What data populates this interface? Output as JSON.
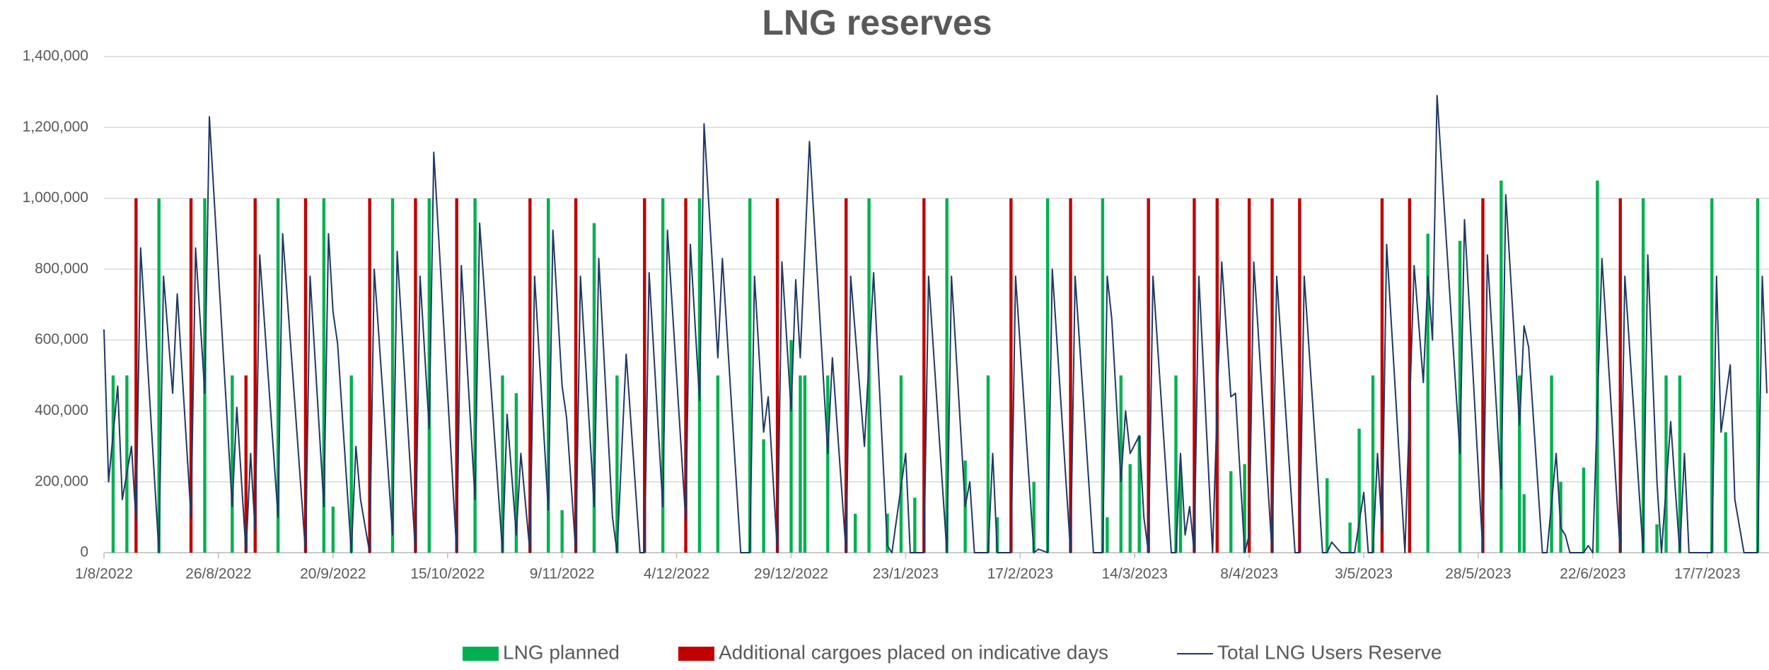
{
  "chart_data": {
    "type": "bar-line",
    "title": "LNG reserves",
    "xlim": [
      "1/8/2022",
      "30/7/2023"
    ],
    "xticks": [
      "1/8/2022",
      "26/8/2022",
      "20/9/2022",
      "15/10/2022",
      "9/11/2022",
      "4/12/2022",
      "29/12/2022",
      "23/1/2023",
      "17/2/2023",
      "14/3/2023",
      "8/4/2023",
      "3/5/2023",
      "28/5/2023",
      "22/6/2023",
      "17/7/2023"
    ],
    "ylim": [
      0,
      1400000
    ],
    "yticks": [
      0,
      {
        "value": 200000,
        "label": "200,000"
      },
      {
        "value": 400000,
        "label": "400,000"
      },
      {
        "value": 600000,
        "label": "600,000"
      },
      {
        "value": 800000,
        "label": "800,000"
      },
      {
        "value": 1000000,
        "label": "1,000,000"
      },
      {
        "value": 1200000,
        "label": "1,200,000"
      },
      {
        "value": 1400000,
        "label": "1,400,000"
      }
    ],
    "grid": true,
    "series": [
      {
        "name": "LNG planned",
        "kind": "bar",
        "color": "#00b050",
        "x": [
          "3/8/2022",
          "6/8/2022",
          "13/8/2022",
          "23/8/2022",
          "29/8/2022",
          "8/9/2022",
          "18/9/2022",
          "20/9/2022",
          "24/9/2022",
          "3/10/2022",
          "11/10/2022",
          "21/10/2022",
          "27/10/2022",
          "30/10/2022",
          "6/11/2022",
          "9/11/2022",
          "16/11/2022",
          "21/11/2022",
          "1/12/2022",
          "9/12/2022",
          "13/12/2022",
          "20/12/2022",
          "23/12/2022",
          "29/12/2022",
          "31/12/2022",
          "1/1/2023",
          "6/1/2023",
          "12/1/2023",
          "15/1/2023",
          "19/1/2023",
          "22/1/2023",
          "25/1/2023",
          "1/2/2023",
          "5/2/2023",
          "10/2/2023",
          "12/2/2023",
          "20/2/2023",
          "23/2/2023",
          "7/3/2023",
          "8/3/2023",
          "11/3/2023",
          "13/3/2023",
          "15/3/2023",
          "23/3/2023",
          "24/3/2023",
          "4/4/2023",
          "7/4/2023",
          "25/4/2023",
          "30/4/2023",
          "2/5/2023",
          "5/5/2023",
          "17/5/2023",
          "24/5/2023",
          "2/6/2023",
          "6/6/2023",
          "7/6/2023",
          "13/6/2023",
          "15/6/2023",
          "20/6/2023",
          "23/6/2023",
          "3/7/2023",
          "6/7/2023",
          "8/7/2023",
          "11/7/2023",
          "18/7/2023",
          "21/7/2023",
          "28/7/2023"
        ],
        "values": [
          500000,
          500000,
          1000000,
          1000000,
          500000,
          1000000,
          1000000,
          130000,
          500000,
          1000000,
          1000000,
          1000000,
          500000,
          450000,
          1000000,
          120000,
          930000,
          500000,
          1000000,
          1000000,
          500000,
          1000000,
          320000,
          600000,
          500000,
          500000,
          500000,
          110000,
          1000000,
          110000,
          500000,
          155000,
          1000000,
          260000,
          500000,
          100000,
          200000,
          1000000,
          1000000,
          100000,
          500000,
          250000,
          330000,
          500000,
          240000,
          230000,
          250000,
          210000,
          85000,
          350000,
          500000,
          900000,
          880000,
          1050000,
          500000,
          165000,
          500000,
          200000,
          240000,
          1050000,
          1000000,
          80000,
          500000,
          500000,
          1000000,
          340000,
          1000000
        ]
      },
      {
        "name": "Additional cargoes placed on indicative days",
        "kind": "bar",
        "color": "#c00000",
        "x": [
          "8/8/2022",
          "20/8/2022",
          "1/9/2022",
          "3/9/2022",
          "14/9/2022",
          "28/9/2022",
          "8/10/2022",
          "17/10/2022",
          "2/11/2022",
          "12/11/2022",
          "27/11/2022",
          "6/12/2022",
          "26/12/2022",
          "10/1/2023",
          "27/1/2023",
          "15/2/2023",
          "28/2/2023",
          "17/3/2023",
          "27/3/2023",
          "1/4/2023",
          "8/4/2023",
          "13/4/2023",
          "19/4/2023",
          "7/5/2023",
          "13/5/2023",
          "29/5/2023",
          "28/6/2023"
        ],
        "values": [
          1000000,
          1000000,
          500000,
          1000000,
          1000000,
          1000000,
          1000000,
          1000000,
          1000000,
          1000000,
          1000000,
          1000000,
          1000000,
          1000000,
          1000000,
          1000000,
          1000000,
          1000000,
          1000000,
          1000000,
          1000000,
          1000000,
          1000000,
          1000000,
          1000000,
          1000000,
          1000000
        ]
      },
      {
        "name": "Total LNG Users Reserve",
        "kind": "line",
        "color": "#1f3864",
        "x": [
          "1/8/2022",
          "2/8/2022",
          "4/8/2022",
          "5/8/2022",
          "7/8/2022",
          "8/8/2022",
          "9/8/2022",
          "13/8/2022",
          "14/8/2022",
          "16/8/2022",
          "17/8/2022",
          "20/8/2022",
          "21/8/2022",
          "23/8/2022",
          "24/8/2022",
          "29/8/2022",
          "30/8/2022",
          "1/9/2022",
          "2/9/2022",
          "3/9/2022",
          "4/9/2022",
          "8/9/2022",
          "9/9/2022",
          "14/9/2022",
          "15/9/2022",
          "18/9/2022",
          "19/9/2022",
          "20/9/2022",
          "21/9/2022",
          "24/9/2022",
          "25/9/2022",
          "26/9/2022",
          "28/9/2022",
          "29/9/2022",
          "3/10/2022",
          "4/10/2022",
          "8/10/2022",
          "9/10/2022",
          "11/10/2022",
          "12/10/2022",
          "17/10/2022",
          "18/10/2022",
          "21/10/2022",
          "22/10/2022",
          "27/10/2022",
          "28/10/2022",
          "30/10/2022",
          "31/10/2022",
          "2/11/2022",
          "3/11/2022",
          "6/11/2022",
          "7/11/2022",
          "9/11/2022",
          "10/11/2022",
          "12/11/2022",
          "13/11/2022",
          "16/11/2022",
          "17/11/2022",
          "20/11/2022",
          "21/11/2022",
          "23/11/2022",
          "26/11/2022",
          "27/11/2022",
          "28/11/2022",
          "1/12/2022",
          "2/12/2022",
          "6/12/2022",
          "7/12/2022",
          "9/12/2022",
          "10/12/2022",
          "13/12/2022",
          "14/12/2022",
          "18/12/2022",
          "20/12/2022",
          "21/12/2022",
          "23/12/2022",
          "24/12/2022",
          "26/12/2022",
          "27/12/2022",
          "29/12/2022",
          "30/12/2022",
          "31/12/2022",
          "2/1/2023",
          "6/1/2023",
          "7/1/2023",
          "10/1/2023",
          "11/1/2023",
          "14/1/2023",
          "16/1/2023",
          "19/1/2023",
          "20/1/2023",
          "23/1/2023",
          "24/1/2023",
          "27/1/2023",
          "28/1/2023",
          "1/2/2023",
          "2/2/2023",
          "5/2/2023",
          "6/2/2023",
          "7/2/2023",
          "10/2/2023",
          "11/2/2023",
          "12/2/2023",
          "15/2/2023",
          "16/2/2023",
          "20/2/2023",
          "21/2/2023",
          "23/2/2023",
          "24/2/2023",
          "28/2/2023",
          "1/3/2023",
          "5/3/2023",
          "7/3/2023",
          "8/3/2023",
          "9/3/2023",
          "11/3/2023",
          "12/3/2023",
          "13/3/2023",
          "15/3/2023",
          "16/3/2023",
          "17/3/2023",
          "18/3/2023",
          "22/3/2023",
          "23/3/2023",
          "24/3/2023",
          "25/3/2023",
          "26/3/2023",
          "27/3/2023",
          "28/3/2023",
          "31/3/2023",
          "2/4/2023",
          "4/4/2023",
          "5/4/2023",
          "7/4/2023",
          "8/4/2023",
          "9/4/2023",
          "13/4/2023",
          "14/4/2023",
          "18/4/2023",
          "19/4/2023",
          "20/4/2023",
          "24/4/2023",
          "25/4/2023",
          "26/4/2023",
          "28/4/2023",
          "1/5/2023",
          "3/5/2023",
          "4/5/2023",
          "5/5/2023",
          "6/5/2023",
          "7/5/2023",
          "8/5/2023",
          "12/5/2023",
          "14/5/2023",
          "16/5/2023",
          "17/5/2023",
          "18/5/2023",
          "19/5/2023",
          "24/5/2023",
          "25/5/2023",
          "29/5/2023",
          "30/5/2023",
          "2/6/2023",
          "3/6/2023",
          "6/6/2023",
          "7/6/2023",
          "8/6/2023",
          "11/6/2023",
          "12/6/2023",
          "14/6/2023",
          "15/6/2023",
          "16/6/2023",
          "17/6/2023",
          "20/6/2023",
          "21/6/2023",
          "22/6/2023",
          "24/6/2023",
          "28/6/2023",
          "29/6/2023",
          "3/7/2023",
          "4/7/2023",
          "6/7/2023",
          "7/7/2023",
          "9/7/2023",
          "10/7/2023",
          "11/7/2023",
          "12/7/2023",
          "13/7/2023",
          "18/7/2023",
          "19/7/2023",
          "20/7/2023",
          "22/7/2023",
          "23/7/2023",
          "25/7/2023",
          "28/7/2023",
          "29/7/2023",
          "30/7/2023"
        ],
        "values": [
          630000,
          200000,
          470000,
          150000,
          300000,
          90000,
          860000,
          0,
          780000,
          450000,
          730000,
          100000,
          860000,
          450000,
          1230000,
          130000,
          410000,
          0,
          280000,
          60000,
          840000,
          100000,
          900000,
          0,
          780000,
          130000,
          900000,
          680000,
          590000,
          0,
          300000,
          150000,
          0,
          800000,
          50000,
          850000,
          0,
          780000,
          350000,
          1130000,
          0,
          810000,
          150000,
          930000,
          0,
          390000,
          50000,
          280000,
          0,
          780000,
          120000,
          910000,
          470000,
          380000,
          0,
          780000,
          130000,
          830000,
          100000,
          0,
          560000,
          0,
          0,
          790000,
          130000,
          910000,
          90000,
          870000,
          430000,
          1210000,
          550000,
          830000,
          0,
          0,
          780000,
          340000,
          440000,
          0,
          820000,
          400000,
          770000,
          550000,
          1160000,
          280000,
          550000,
          0,
          780000,
          300000,
          790000,
          20000,
          0,
          280000,
          0,
          0,
          780000,
          0,
          780000,
          130000,
          200000,
          0,
          0,
          280000,
          0,
          0,
          780000,
          0,
          10000,
          0,
          800000,
          0,
          780000,
          0,
          0,
          780000,
          660000,
          200000,
          400000,
          280000,
          330000,
          100000,
          0,
          780000,
          0,
          0,
          280000,
          50000,
          130000,
          0,
          780000,
          0,
          820000,
          440000,
          450000,
          0,
          50000,
          820000,
          0,
          780000,
          0,
          0,
          780000,
          0,
          0,
          30000,
          0,
          0,
          170000,
          0,
          0,
          280000,
          60000,
          870000,
          0,
          810000,
          480000,
          780000,
          600000,
          1290000,
          280000,
          940000,
          0,
          840000,
          180000,
          1010000,
          360000,
          640000,
          580000,
          0,
          0,
          280000,
          70000,
          50000,
          0,
          0,
          20000,
          0,
          830000,
          0,
          780000,
          0,
          840000,
          200000,
          0,
          370000,
          180000,
          0,
          280000,
          0,
          0,
          780000,
          340000,
          530000,
          150000,
          0,
          0,
          780000,
          450000
        ]
      }
    ]
  }
}
